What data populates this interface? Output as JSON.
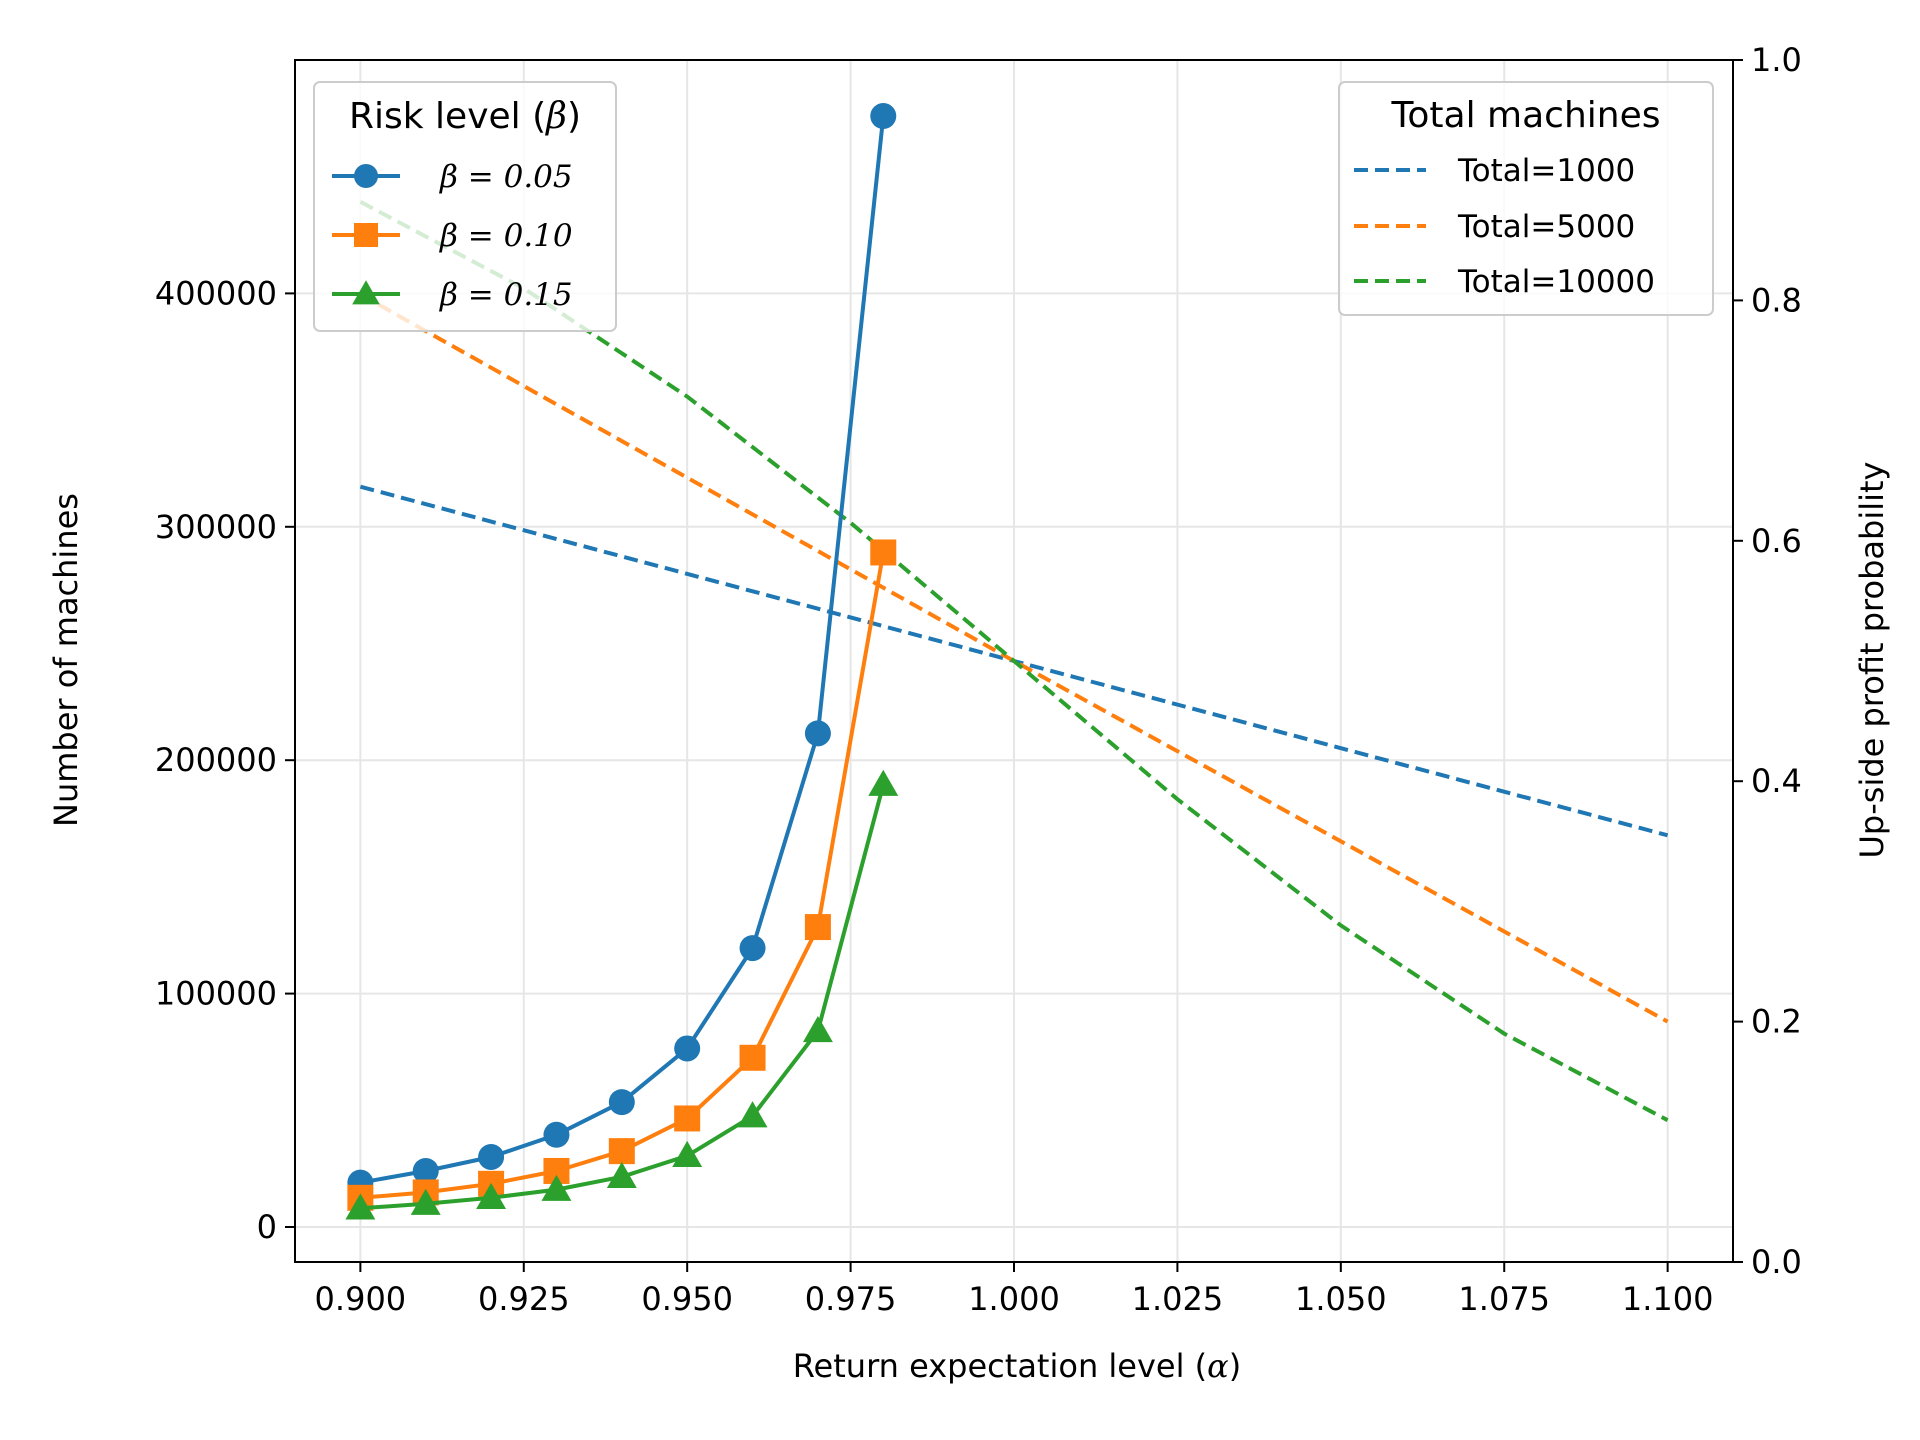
{
  "chart_data": {
    "type": "line",
    "xlabel_prefix": "Return expectation level (",
    "xlabel_symbol": "α",
    "xlabel_suffix": ")",
    "ylabel": "Number of machines",
    "y2label": "Up-side profit probability",
    "xlim": [
      0.89,
      1.11
    ],
    "ylim": [
      -15000,
      500000
    ],
    "y2lim": [
      0.0,
      1.0
    ],
    "x_ticks": [
      "0.900",
      "0.925",
      "0.950",
      "0.975",
      "1.000",
      "1.025",
      "1.050",
      "1.075",
      "1.100"
    ],
    "y_ticks": [
      "0",
      "100000",
      "200000",
      "300000",
      "400000"
    ],
    "y2_ticks": [
      "0.0",
      "0.2",
      "0.4",
      "0.6",
      "0.8",
      "1.0"
    ],
    "grid": true,
    "legend_left": {
      "title_prefix": "Risk level (",
      "title_symbol": "β",
      "title_suffix": ")",
      "placement": "top-left"
    },
    "legend_right": {
      "title": "Total machines",
      "placement": "top-right"
    },
    "series_left": [
      {
        "name": "β = 0.05",
        "marker": "circle",
        "color": "#1f77b4",
        "x": [
          0.9,
          0.91,
          0.92,
          0.93,
          0.94,
          0.95,
          0.96,
          0.97,
          0.98
        ],
        "values": [
          19000,
          24000,
          30000,
          39500,
          53500,
          76500,
          119500,
          211500,
          476000
        ]
      },
      {
        "name": "β = 0.10",
        "marker": "square",
        "color": "#ff7f0e",
        "x": [
          0.9,
          0.91,
          0.92,
          0.93,
          0.94,
          0.95,
          0.96,
          0.97,
          0.98
        ],
        "values": [
          12500,
          14800,
          18500,
          24000,
          32500,
          46500,
          72500,
          128500,
          289000
        ]
      },
      {
        "name": "β = 0.15",
        "marker": "triangle",
        "color": "#2ca02c",
        "x": [
          0.9,
          0.91,
          0.92,
          0.93,
          0.94,
          0.95,
          0.96,
          0.97,
          0.98
        ],
        "values": [
          8000,
          10000,
          12500,
          16000,
          21500,
          30500,
          47500,
          84000,
          189500
        ]
      }
    ],
    "series_right": [
      {
        "name": "Total=1000",
        "color": "#1f77b4",
        "x": [
          0.9,
          1.0,
          1.1
        ],
        "values": [
          0.645,
          0.5,
          0.355
        ]
      },
      {
        "name": "Total=5000",
        "color": "#ff7f0e",
        "x": [
          0.9,
          1.0,
          1.1
        ],
        "values": [
          0.805,
          0.5,
          0.2
        ]
      },
      {
        "name": "Total=10000",
        "color": "#2ca02c",
        "x": [
          0.9,
          0.925,
          0.95,
          0.975,
          1.0,
          1.025,
          1.05,
          1.075,
          1.1
        ],
        "values": [
          0.882,
          0.81,
          0.72,
          0.615,
          0.5,
          0.385,
          0.28,
          0.19,
          0.118
        ]
      }
    ]
  }
}
